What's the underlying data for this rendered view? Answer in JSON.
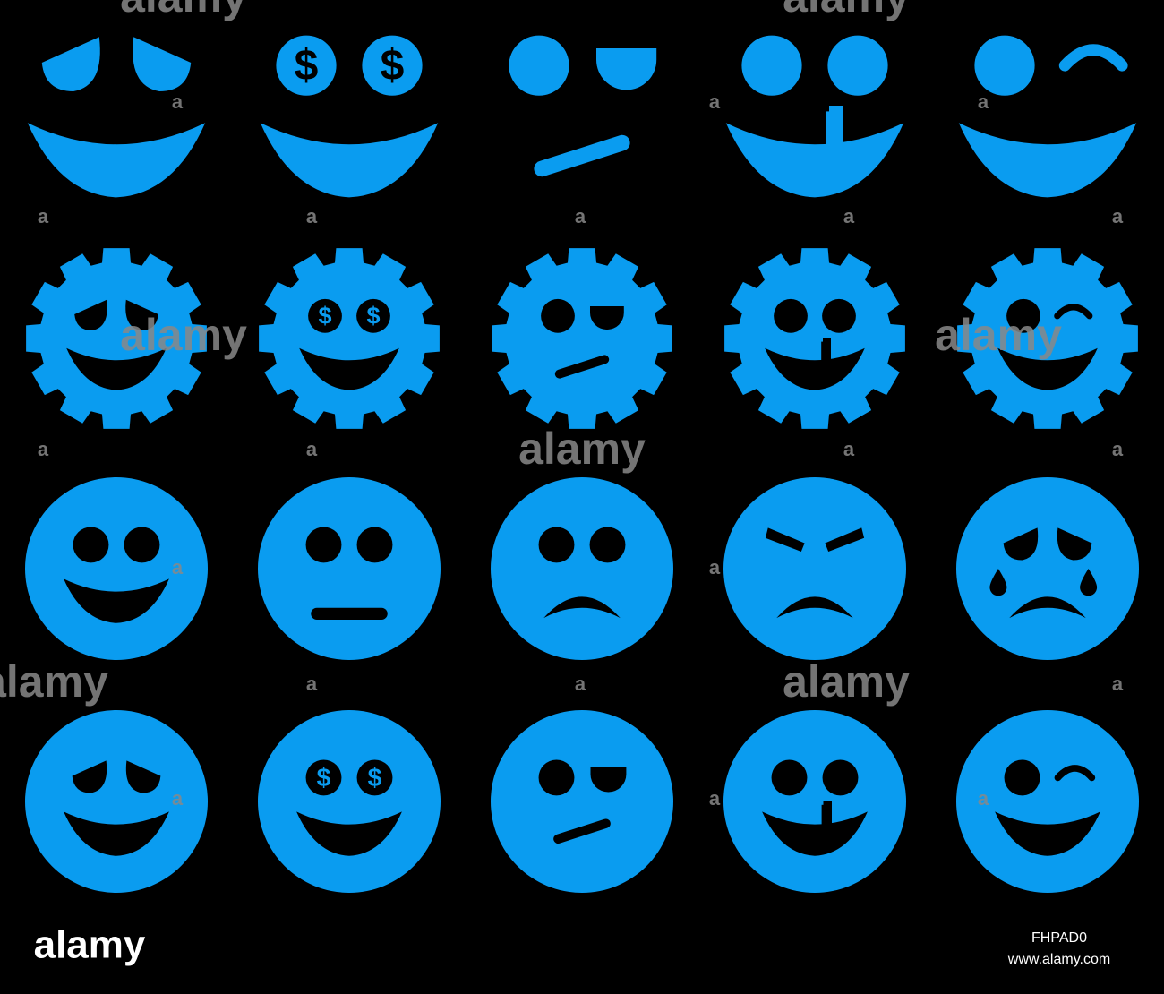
{
  "dollar": "$",
  "watermark": "alamy",
  "watermark_small": "a",
  "logo": "alamy",
  "image_id": "FHPAD0",
  "site": "www.alamy.com"
}
